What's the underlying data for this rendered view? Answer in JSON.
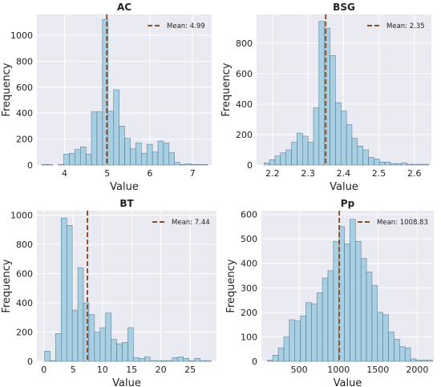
{
  "chart_data": [
    {
      "type": "bar",
      "title": "AC",
      "xlabel": "Value",
      "ylabel": "Frequency",
      "xlim": [
        3.35,
        7.45
      ],
      "ylim": [
        0,
        1160
      ],
      "xticks": [
        4,
        5,
        6,
        7
      ],
      "yticks": [
        0,
        200,
        400,
        600,
        800,
        1000
      ],
      "bin_start": 3.46,
      "bin_width": 0.13,
      "values": [
        5,
        5,
        0,
        5,
        85,
        90,
        120,
        140,
        85,
        410,
        410,
        1120,
        415,
        580,
        300,
        205,
        125,
        170,
        90,
        160,
        100,
        185,
        170,
        95,
        20,
        5,
        10,
        5,
        5,
        5
      ],
      "mean": 4.99,
      "mean_label": "Mean: 4.99",
      "grid": true,
      "legend": "top-right"
    },
    {
      "type": "bar",
      "title": "BSG",
      "xlabel": "Value",
      "ylabel": "Frequency",
      "xlim": [
        2.155,
        2.648
      ],
      "ylim": [
        0,
        990
      ],
      "xticks": [
        2.2,
        2.3,
        2.4,
        2.5,
        2.6
      ],
      "yticks": [
        0,
        200,
        400,
        600,
        800
      ],
      "bin_start": 2.176,
      "bin_width": 0.0155,
      "values": [
        15,
        35,
        60,
        80,
        100,
        150,
        210,
        190,
        150,
        375,
        945,
        900,
        720,
        410,
        355,
        265,
        175,
        125,
        100,
        50,
        40,
        20,
        20,
        10,
        10,
        15,
        5,
        5,
        5,
        5
      ],
      "mean": 2.35,
      "mean_label": "Mean: 2.35",
      "grid": true,
      "legend": "top-right"
    },
    {
      "type": "bar",
      "title": "BT",
      "xlabel": "Value",
      "ylabel": "Frequency",
      "xlim": [
        -1.2,
        29.5
      ],
      "ylim": [
        0,
        1030
      ],
      "xticks": [
        0,
        5,
        10,
        15,
        20,
        25
      ],
      "yticks": [
        0,
        200,
        400,
        600,
        800,
        1000
      ],
      "bin_start": 0.1,
      "bin_width": 0.95,
      "values": [
        70,
        5,
        190,
        980,
        930,
        350,
        640,
        400,
        320,
        200,
        230,
        330,
        150,
        120,
        130,
        230,
        25,
        20,
        30,
        5,
        5,
        5,
        5,
        25,
        30,
        20,
        5,
        20,
        5,
        5
      ],
      "mean": 7.44,
      "mean_label": "Mean: 7.44",
      "grid": true,
      "legend": "top-right"
    },
    {
      "type": "bar",
      "title": "Pp",
      "xlabel": "Value",
      "ylabel": "Frequency",
      "xlim": [
        20,
        2210
      ],
      "ylim": [
        0,
        615
      ],
      "xticks": [
        500,
        1000,
        1500,
        2000
      ],
      "yticks": [
        0,
        100,
        200,
        300,
        400,
        500,
        600
      ],
      "bin_start": 95,
      "bin_width": 70,
      "values": [
        5,
        25,
        55,
        100,
        170,
        165,
        185,
        240,
        235,
        280,
        340,
        370,
        490,
        550,
        480,
        580,
        490,
        420,
        365,
        310,
        200,
        190,
        120,
        90,
        60,
        55,
        10,
        5,
        5,
        5
      ],
      "mean": 1008.83,
      "mean_label": "Mean: 1008.83",
      "grid": true,
      "legend": "top-right"
    }
  ],
  "colors": {
    "bar_fill": "#9ecae1",
    "bar_edge": "#4a6f8a",
    "mean_line": "#8b4f2c",
    "plot_bg": "#eaeaf2",
    "grid": "#ffffff"
  }
}
